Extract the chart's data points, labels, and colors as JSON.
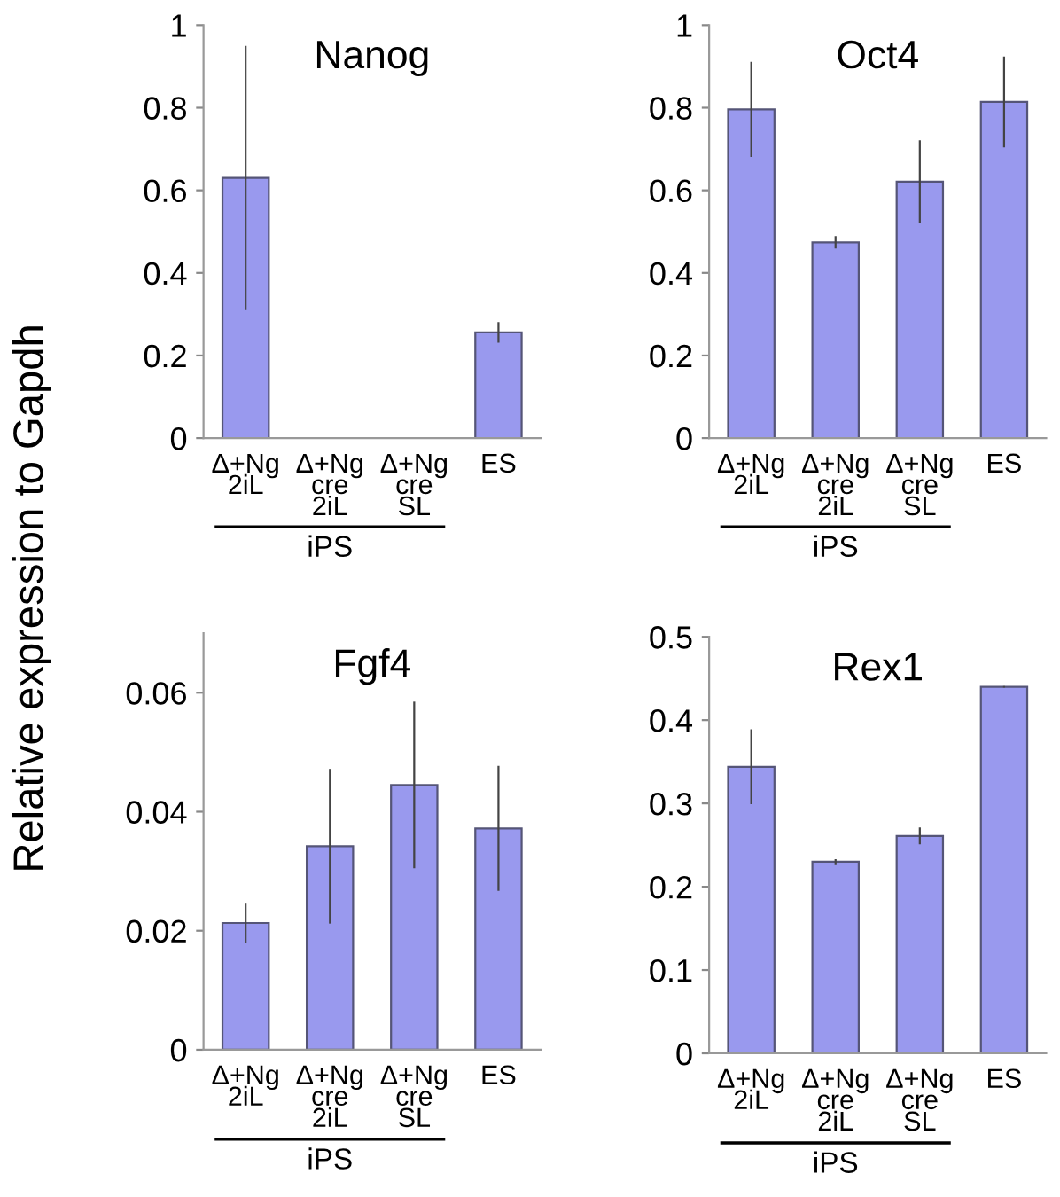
{
  "chart_data": [
    {
      "type": "bar",
      "title": "Nanog",
      "ylabel": "Relative expression to Gapdh",
      "categories": [
        "Δ+Ng\n2iL",
        "Δ+Ng\ncre\n2iL",
        "Δ+Ng\ncre\nSL",
        "ES"
      ],
      "values": [
        0.63,
        null,
        null,
        0.256
      ],
      "errors": [
        0.32,
        null,
        null,
        0.025
      ],
      "color": "#9999ee",
      "ylim": [
        0,
        1
      ],
      "yticks": [
        0,
        0.2,
        0.4,
        0.6,
        0.8,
        1
      ],
      "annotations": [
        "iPS"
      ]
    },
    {
      "type": "bar",
      "title": "Oct4",
      "categories": [
        "Δ+Ng\n2iL",
        "Δ+Ng\ncre\n2iL",
        "Δ+Ng\ncre\nSL",
        "ES"
      ],
      "values": [
        0.796,
        0.474,
        0.621,
        0.814
      ],
      "errors": [
        0.115,
        0.015,
        0.1,
        0.11
      ],
      "color": "#9999ee",
      "ylim": [
        0,
        1
      ],
      "yticks": [
        0,
        0.2,
        0.4,
        0.6,
        0.8,
        1
      ],
      "annotations": [
        "iPS"
      ]
    },
    {
      "type": "bar",
      "title": "Fgf4",
      "categories": [
        "Δ+Ng\n2iL",
        "Δ+Ng\ncre\n2iL",
        "Δ+Ng\ncre\nSL",
        "ES"
      ],
      "values": [
        0.0213,
        0.0342,
        0.0445,
        0.0372
      ],
      "errors": [
        0.0034,
        0.013,
        0.014,
        0.0105
      ],
      "color": "#9999ee",
      "ylim": [
        0,
        0.07
      ],
      "yticks": [
        0,
        0.02,
        0.04,
        0.06
      ],
      "annotations": [
        "iPS"
      ]
    },
    {
      "type": "bar",
      "title": "Rex1",
      "categories": [
        "Δ+Ng\n2iL",
        "Δ+Ng\ncre\n2iL",
        "Δ+Ng\ncre\nSL",
        "ES"
      ],
      "values": [
        0.344,
        0.23,
        0.261,
        0.44
      ],
      "errors": [
        0.045,
        0.003,
        0.01,
        0.001
      ],
      "color": "#9999ee",
      "ylim": [
        0,
        0.5
      ],
      "yticks": [
        0,
        0.1,
        0.2,
        0.3,
        0.4,
        0.5
      ],
      "annotations": [
        "iPS"
      ]
    }
  ]
}
